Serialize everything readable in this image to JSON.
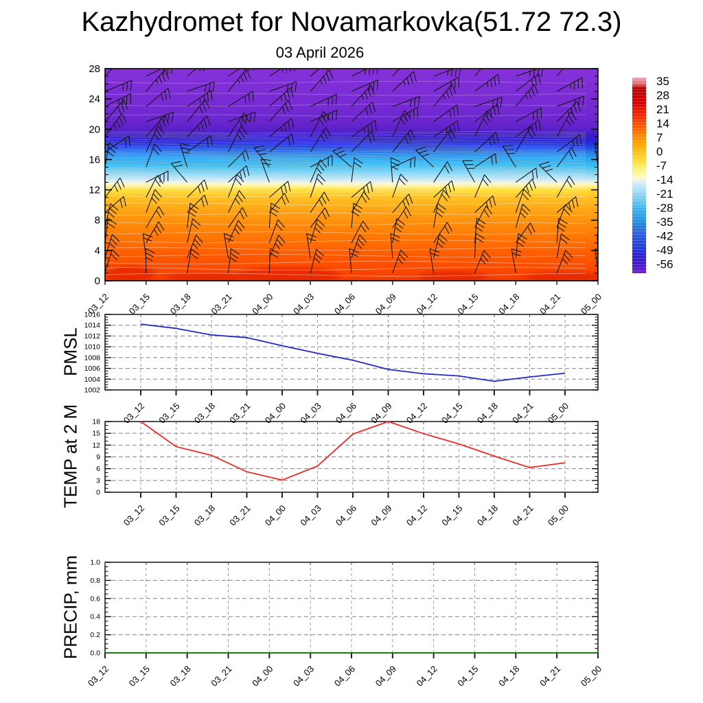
{
  "title": "Kazhydromet for Novamarkovka(51.72 72.3)",
  "subtitle": "03 April 2026",
  "x_labels": [
    "03_12",
    "03_15",
    "03_18",
    "03_21",
    "04_00",
    "04_03",
    "04_06",
    "04_09",
    "04_12",
    "04_15",
    "04_18",
    "04_21",
    "05_00"
  ],
  "chart_data": [
    {
      "id": "temperature-height-cross-section",
      "type": "heatmap",
      "ylabel": "",
      "ylim": [
        0,
        28
      ],
      "ytick_labels": [
        "0",
        "4",
        "8",
        "12",
        "16",
        "20",
        "24",
        "28"
      ],
      "y_minor_step": 1,
      "x_categories": [
        "03_12",
        "03_15",
        "03_18",
        "03_21",
        "04_00",
        "04_03",
        "04_06",
        "04_09",
        "04_12",
        "04_15",
        "04_18",
        "04_21",
        "05_00"
      ],
      "description": "Temperature (deg C) colour fill vs height with wind barbs",
      "colorbar_tick_labels": [
        "35",
        "28",
        "21",
        "14",
        "7",
        "0",
        "-7",
        "-14",
        "-21",
        "-28",
        "-35",
        "-42",
        "-49",
        "-56"
      ],
      "colorbar_gradient": [
        [
          0.0,
          "#F2A6B0"
        ],
        [
          0.033,
          "#D96A6E"
        ],
        [
          0.053,
          "#B80406"
        ],
        [
          0.089,
          "#C50002"
        ],
        [
          0.131,
          "#D90001"
        ],
        [
          0.161,
          "#E81200"
        ],
        [
          0.202,
          "#F63000"
        ],
        [
          0.233,
          "#FF4A00"
        ],
        [
          0.269,
          "#FF6C00"
        ],
        [
          0.305,
          "#FF8A00"
        ],
        [
          0.341,
          "#FFA600"
        ],
        [
          0.377,
          "#FFBE10"
        ],
        [
          0.413,
          "#FFD62E"
        ],
        [
          0.449,
          "#FFEA52"
        ],
        [
          0.485,
          "#FFF795"
        ],
        [
          0.516,
          "#FDFBCD"
        ],
        [
          0.526,
          "#E5F3EE"
        ],
        [
          0.552,
          "#C4E8F8"
        ],
        [
          0.593,
          "#98D8F4"
        ],
        [
          0.634,
          "#68C6F0"
        ],
        [
          0.67,
          "#3EB4EB"
        ],
        [
          0.706,
          "#2CA0E5"
        ],
        [
          0.737,
          "#2A8CE0"
        ],
        [
          0.773,
          "#2972DC"
        ],
        [
          0.809,
          "#2A58DC"
        ],
        [
          0.845,
          "#2744DA"
        ],
        [
          0.881,
          "#2532D6"
        ],
        [
          0.917,
          "#311FCA"
        ],
        [
          0.953,
          "#4418C6"
        ],
        [
          0.978,
          "#5A1EC9"
        ],
        [
          1.0,
          "#6D26CF"
        ]
      ],
      "field_gradient": [
        [
          28.0,
          "#8531DA"
        ],
        [
          24.0,
          "#7A2CD4"
        ],
        [
          21.0,
          "#6B26CE"
        ],
        [
          20.0,
          "#5B21CA"
        ],
        [
          19.2,
          "#3D1DC6"
        ],
        [
          18.6,
          "#2B20D0"
        ],
        [
          18.1,
          "#2430DC"
        ],
        [
          17.6,
          "#2248E2"
        ],
        [
          17.0,
          "#2A78E6"
        ],
        [
          16.2,
          "#2CA2EC"
        ],
        [
          15.2,
          "#3ABCEE"
        ],
        [
          14.3,
          "#7FD2F2"
        ],
        [
          13.6,
          "#B2E2F6"
        ],
        [
          13.1,
          "#DFF0EE"
        ],
        [
          12.8,
          "#FCF8C8"
        ],
        [
          12.4,
          "#FFEF86"
        ],
        [
          12.0,
          "#FFDC3A"
        ],
        [
          11.0,
          "#FFC226"
        ],
        [
          9.5,
          "#FFA818"
        ],
        [
          8.0,
          "#FF920E"
        ],
        [
          6.0,
          "#FF7A06"
        ],
        [
          4.0,
          "#FF6202"
        ],
        [
          2.0,
          "#FC4E00"
        ],
        [
          0.0,
          "#F43A00"
        ]
      ],
      "contours": [
        [
          0.8,
          2.2,
          0.5
        ],
        [
          1.6,
          2.2,
          0.5
        ],
        [
          2.4,
          2.0,
          0.5
        ],
        [
          3.3,
          2.0,
          0.45
        ],
        [
          4.2,
          2.0,
          0.45
        ],
        [
          5.2,
          1.8,
          0.45
        ],
        [
          6.3,
          1.8,
          0.45
        ],
        [
          7.5,
          1.8,
          0.45
        ],
        [
          8.8,
          1.6,
          0.45
        ],
        [
          10.1,
          1.6,
          0.45
        ],
        [
          11.2,
          1.5,
          0.45
        ],
        [
          21.8,
          1.5,
          0.3
        ],
        [
          23.2,
          1.5,
          0.3
        ],
        [
          24.6,
          1.5,
          0.3
        ],
        [
          26.2,
          1.5,
          0.3
        ]
      ],
      "stripe_band": [
        11.6,
        19.6,
        0.2,
        1.0,
        0.38
      ],
      "hot_blobs": [
        [
          190,
          0.8,
          35,
          13
        ],
        [
          300,
          0.4,
          55,
          8
        ],
        [
          420,
          0.7,
          75,
          12
        ],
        [
          660,
          0.5,
          50,
          9
        ],
        [
          820,
          0.5,
          55,
          8
        ]
      ],
      "barbs": {
        "columns": 13,
        "rows": 14,
        "h0": 1,
        "dh": 2,
        "color": "#151515"
      }
    },
    {
      "id": "pmsl",
      "type": "line",
      "ylabel": "PMSL",
      "ylim": [
        1002,
        1016
      ],
      "ytick_labels": [
        "1002",
        "1004",
        "1006",
        "1008",
        "1010",
        "1012",
        "1014",
        "1016"
      ],
      "y_minor_step": 0.5,
      "color": "#2626cc",
      "values": [
        1014.2,
        1013.4,
        1012.2,
        1011.7,
        1010.2,
        1008.8,
        1007.5,
        1005.8,
        1005.0,
        1004.6,
        1003.6,
        1004.4,
        1005.1
      ]
    },
    {
      "id": "temp-2m",
      "type": "line",
      "ylabel": "TEMP at 2 M",
      "ylim": [
        0,
        18
      ],
      "ytick_labels": [
        "0",
        "3",
        "6",
        "9",
        "12",
        "15",
        "18"
      ],
      "y_minor_step": 1,
      "color": "#f02828",
      "values": [
        18.0,
        11.6,
        9.4,
        5.2,
        3.1,
        6.7,
        14.8,
        18.0,
        14.9,
        12.3,
        9.2,
        6.3,
        7.5
      ]
    },
    {
      "id": "precip",
      "type": "line",
      "ylabel": "PRECIP, mm",
      "ylim": [
        0,
        1
      ],
      "ytick_labels": [
        "0.0",
        "0.2",
        "0.4",
        "0.6",
        "0.8",
        "1.0"
      ],
      "y_minor_step": 0.05,
      "color": "#067806",
      "values": [
        0,
        0,
        0,
        0,
        0,
        0,
        0,
        0,
        0,
        0,
        0,
        0,
        0
      ]
    }
  ]
}
